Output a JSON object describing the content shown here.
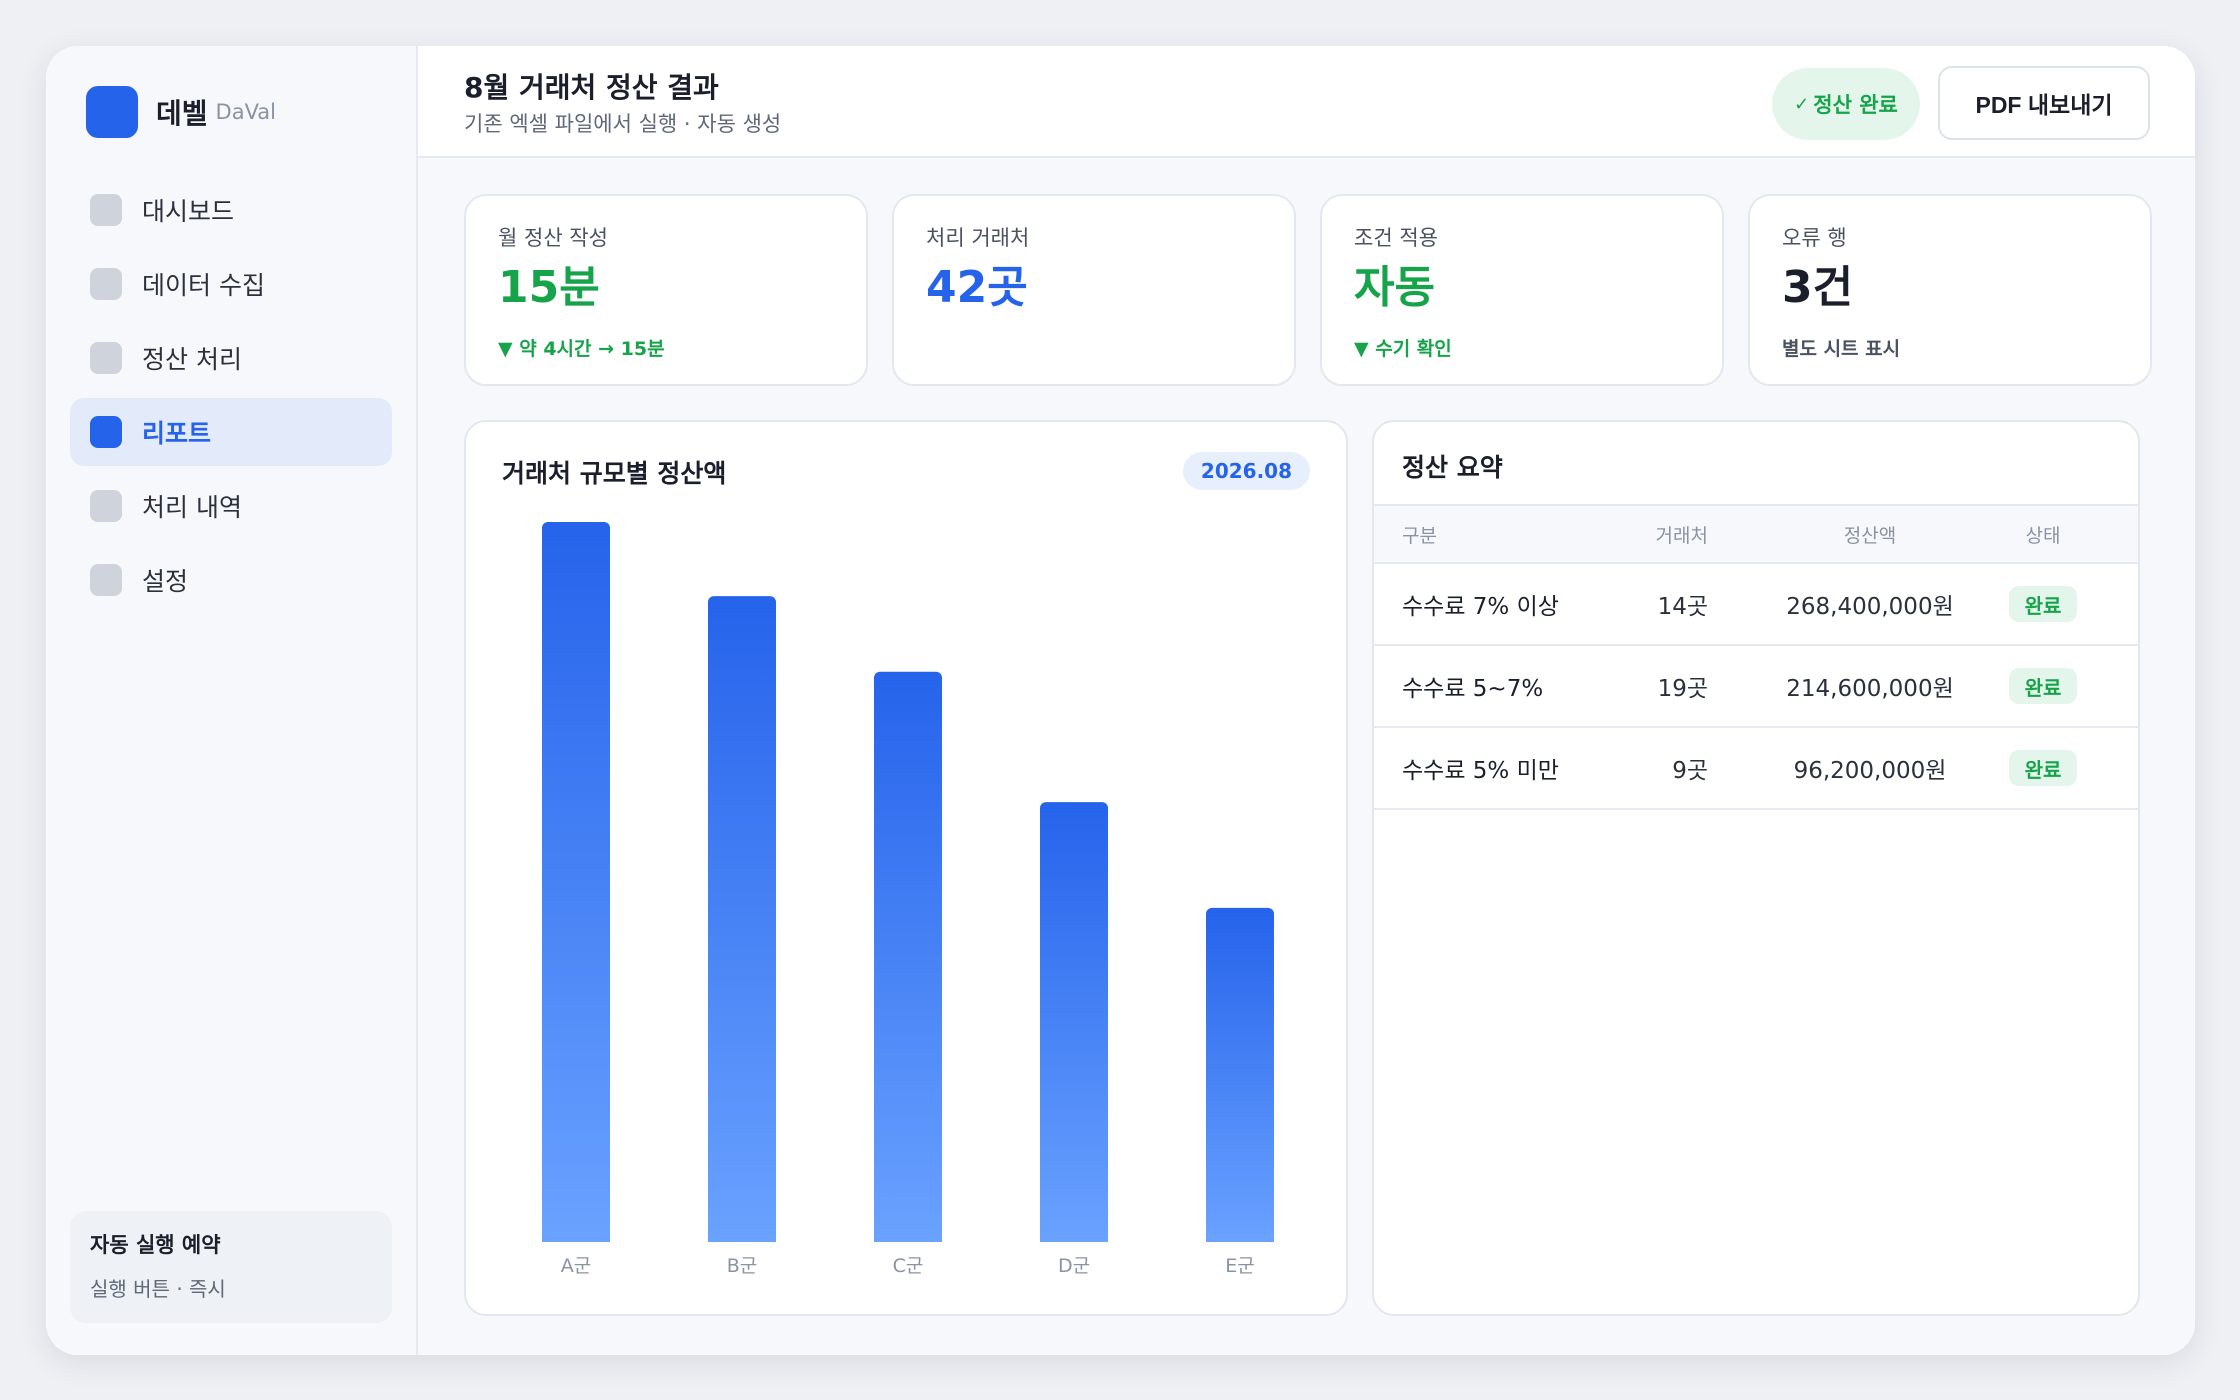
{
  "brand": {
    "name": "데벨",
    "sub": "DaVal"
  },
  "sidebar": {
    "items": [
      {
        "label": "대시보드",
        "active": false
      },
      {
        "label": "데이터 수집",
        "active": false
      },
      {
        "label": "정산 처리",
        "active": false
      },
      {
        "label": "리포트",
        "active": true
      },
      {
        "label": "처리 내역",
        "active": false
      },
      {
        "label": "설정",
        "active": false
      }
    ],
    "schedule": {
      "title": "자동 실행 예약",
      "sub": "실행 버튼 · 즉시"
    }
  },
  "header": {
    "title": "8월 거래처 정산 결과",
    "subtitle": "기존 엑셀 파일에서 실행 · 자동 생성",
    "status_check": "✓",
    "status_label": "정산 완료",
    "pdf_label": "PDF 내보내기"
  },
  "kpis": [
    {
      "label": "월 정산 작성",
      "value": "15분",
      "note": "▼ 약 4시간 → 15분",
      "color": "#16a34a",
      "note_color": "#16a34a"
    },
    {
      "label": "처리 거래처",
      "value": "42곳",
      "note": "",
      "color": "#2563eb",
      "note_color": "#16a34a"
    },
    {
      "label": "조건 적용",
      "value": "자동",
      "note": "▼ 수기 확인",
      "color": "#16a34a",
      "note_color": "#16a34a"
    },
    {
      "label": "오류 행",
      "value": "3건",
      "note": "별도 시트 표시",
      "color": "#1a1f2b",
      "note_color": "#4a5262"
    }
  ],
  "chart": {
    "title": "거래처 규모별 정산액",
    "date": "2026.08"
  },
  "chart_data": {
    "type": "bar",
    "categories": [
      "A군",
      "B군",
      "C군",
      "D군",
      "E군"
    ],
    "values": [
      100,
      89.7,
      79.2,
      61.1,
      46.4
    ],
    "ylim": [
      0,
      100
    ],
    "title": "거래처 규모별 정산액",
    "xlabel": "",
    "ylabel": "",
    "grid": false,
    "colors": {
      "top": "#2563eb",
      "bottom": "#6aa2ff"
    }
  },
  "summary": {
    "title": "정산 요약",
    "columns": [
      "구분",
      "거래처",
      "정산액",
      "상태"
    ],
    "rows": [
      {
        "category": "수수료 7% 이상",
        "count": "14곳",
        "amount": "268,400,000원",
        "status": "완료"
      },
      {
        "category": "수수료 5~7%",
        "count": "19곳",
        "amount": "214,600,000원",
        "status": "완료"
      },
      {
        "category": "수수료 5% 미만",
        "count": "9곳",
        "amount": "96,200,000원",
        "status": "완료"
      }
    ]
  }
}
